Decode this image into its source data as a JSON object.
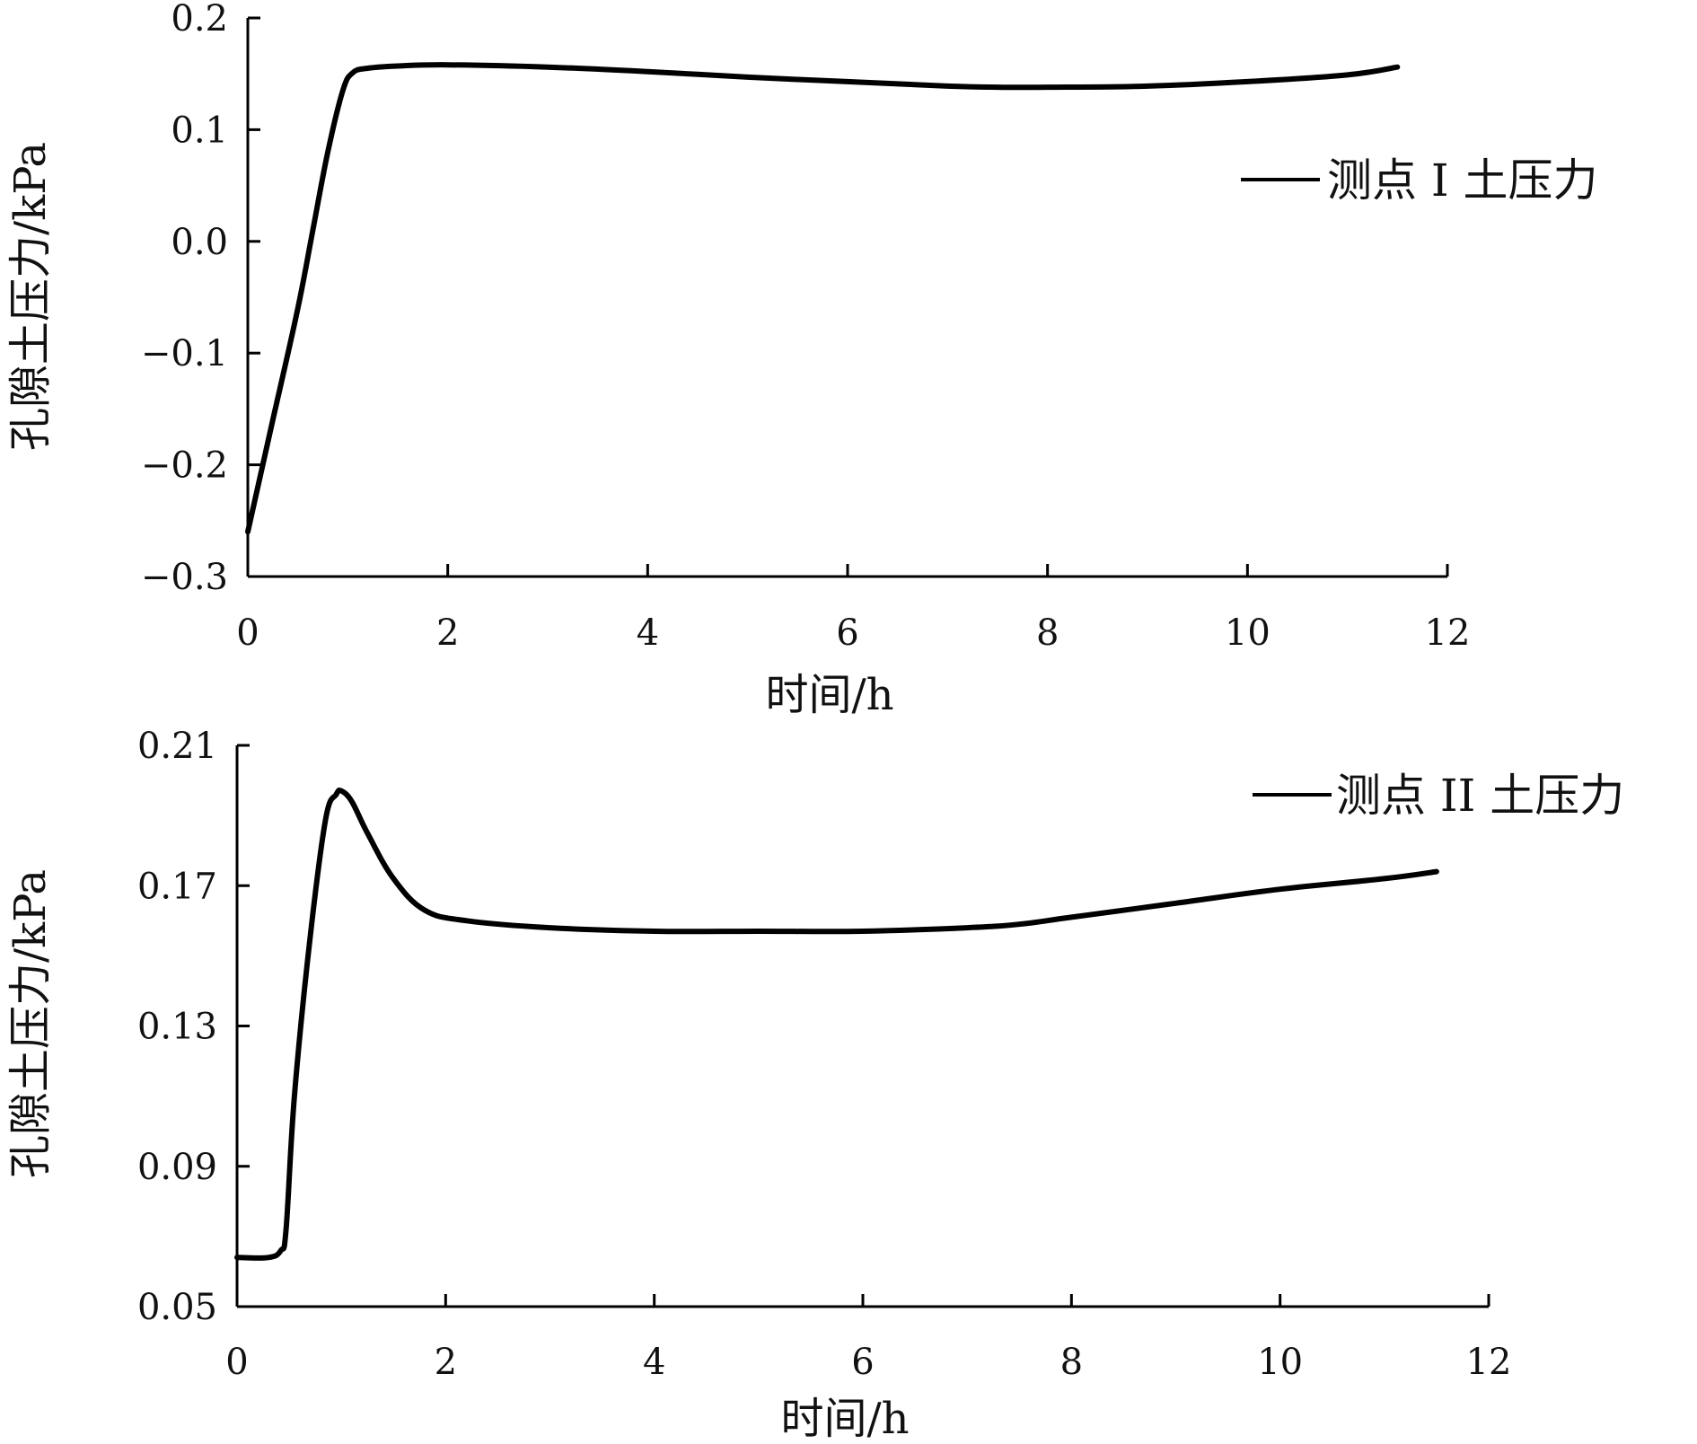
{
  "chart_data": [
    {
      "type": "line",
      "xlabel": "时间/h",
      "ylabel": "孔隙土压力/kPa",
      "xlim": [
        0,
        12
      ],
      "ylim": [
        -0.3,
        0.2
      ],
      "x_ticks": [
        "0",
        "2",
        "4",
        "6",
        "8",
        "10",
        "12"
      ],
      "y_ticks": [
        "0.2",
        "0.1",
        "0.0",
        "−0.1",
        "−0.2",
        "−0.3"
      ],
      "y_tick_values": [
        0.2,
        0.1,
        0.0,
        -0.1,
        -0.2,
        -0.3
      ],
      "grid": false,
      "legend_position": "right",
      "series": [
        {
          "name": "测点 I 土压力",
          "color": "#000000",
          "x": [
            0,
            0.25,
            0.5,
            0.65,
            0.8,
            0.95,
            1.05,
            1.2,
            1.5,
            2,
            3,
            4,
            5,
            6,
            7,
            7.5,
            8,
            9,
            10,
            11,
            11.5
          ],
          "y": [
            -0.26,
            -0.16,
            -0.06,
            0.01,
            0.08,
            0.135,
            0.151,
            0.155,
            0.157,
            0.158,
            0.156,
            0.152,
            0.147,
            0.143,
            0.139,
            0.138,
            0.138,
            0.139,
            0.143,
            0.149,
            0.156
          ]
        }
      ]
    },
    {
      "type": "line",
      "xlabel": "时间/h",
      "ylabel": "孔隙土压力/kPa",
      "xlim": [
        0,
        12
      ],
      "ylim": [
        0.05,
        0.21
      ],
      "x_ticks": [
        "0",
        "2",
        "4",
        "6",
        "8",
        "10",
        "12"
      ],
      "y_ticks": [
        "0.21",
        "0.17",
        "0.13",
        "0.09",
        "0.05"
      ],
      "y_tick_values": [
        0.21,
        0.17,
        0.13,
        0.09,
        0.05
      ],
      "grid": false,
      "legend_position": "top-right",
      "series": [
        {
          "name": "测点 II 土压力",
          "color": "#000000",
          "x": [
            0,
            0.3,
            0.42,
            0.47,
            0.55,
            0.7,
            0.85,
            0.95,
            1.0,
            1.1,
            1.25,
            1.5,
            1.8,
            2.2,
            3,
            4,
            5,
            6,
            7,
            7.5,
            8,
            9,
            10,
            11,
            11.5
          ],
          "y": [
            0.064,
            0.064,
            0.066,
            0.072,
            0.11,
            0.155,
            0.189,
            0.196,
            0.197,
            0.194,
            0.185,
            0.172,
            0.163,
            0.16,
            0.158,
            0.157,
            0.157,
            0.157,
            0.158,
            0.159,
            0.161,
            0.165,
            0.169,
            0.172,
            0.174
          ]
        }
      ]
    }
  ]
}
